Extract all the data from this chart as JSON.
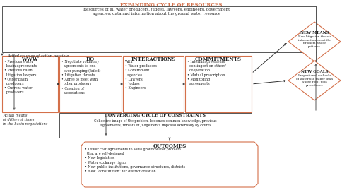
{
  "title": "EXPANDING CYCLE OF RESOURCES",
  "title_color": "#d4704a",
  "bg_color": "#ffffff",
  "box_color": "#d4704a",
  "arrow_color": "#333333",
  "text_color": "#222222",
  "gray_color": "#555555",
  "top_banner_text": "Resources of all water producers, judges, lawyers, engineers, government\nagencies; data and information about the ground water resource",
  "italic_label_top": "Actual courses of action possible",
  "italic_label_bottom": "Actual means\nat different times\nin the basin negotiations",
  "www_title": "WWW",
  "www_body": "• Previous water\n  basin agreements\n• Previous basin\n  litigation lawyers\n• Other basin\n  producers\n• Current water\n  producers",
  "do_title": "DO",
  "do_body": "• Negotiate voluntary\n  agreements to end\n  over pumping (failed)\n• Litigation threats\n• Agree to meet with\n  other producers\n• Creation of\n  associations",
  "interactions_title": "INTERACTIONS",
  "interactions_body": "With\n• Water producers\n• Government\n  agencies\n• Lawyers\n• Judges\n• Engineers",
  "commitments_title": "COMMITMENTS",
  "commitments_body": "• Interim agreements\n  contingent on others'\n  cooperation\n• Mutual prescription\n• Monitoring\n  agreements",
  "converging_title": "CONVERGING CYCLE OF CONSTRAINTS",
  "converging_body": "Collective image of the problem becomes common knowledge, previous\nagreements, threats of judgements imposed externally by courts",
  "outcomes_title": "OUTCOMES",
  "outcomes_body": "• Lower cost agreements to solve groundwater problem\n  that are self-designed\n• New legislation\n• Water exchange rights\n• New public institutions, governance structures, districts\n• New “constitution” for district creation",
  "new_means_title": "NEW MEANS",
  "new_means_body": "New litigation threats\ninformation about the\nproblem, usage\npatterns",
  "new_goals_title": "NEW GOALS",
  "new_goals_body": "Proportional cutbacks\nof water use rather than\nwhose right took\nprecedence"
}
